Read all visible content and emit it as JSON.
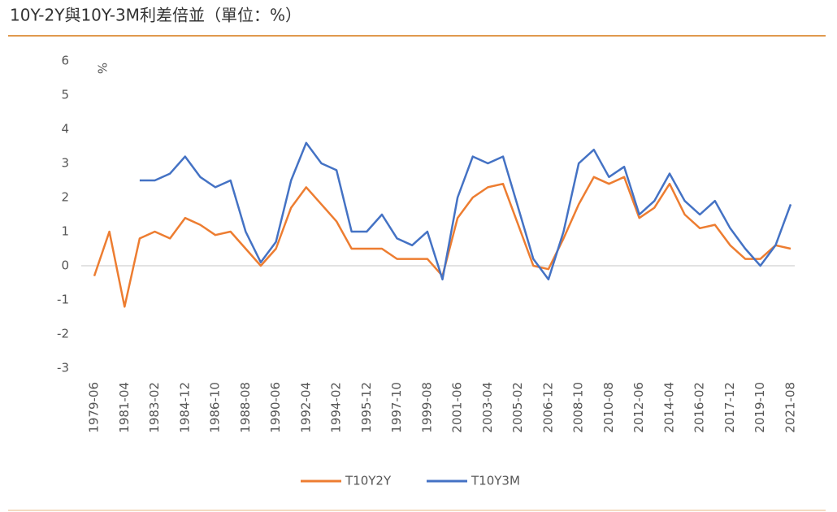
{
  "chart_data": {
    "type": "line",
    "title": "10Y-2Y與10Y-3M利差倍並（單位：%）",
    "y_unit_label": "%",
    "categories": [
      "1979-06",
      null,
      "1981-04",
      null,
      "1983-02",
      null,
      "1984-12",
      null,
      "1986-10",
      null,
      "1988-08",
      null,
      "1990-06",
      null,
      "1992-04",
      null,
      "1994-02",
      null,
      "1995-12",
      null,
      "1997-10",
      null,
      "1999-08",
      null,
      "2001-06",
      null,
      "2003-04",
      null,
      "2005-02",
      null,
      "2006-12",
      null,
      "2008-10",
      null,
      "2010-08",
      null,
      "2012-06",
      null,
      "2014-04",
      null,
      "2016-02",
      null,
      "2017-12",
      null,
      "2019-10",
      null,
      "2021-08"
    ],
    "series": [
      {
        "name": "T10Y2Y",
        "color": "#ed7d31",
        "values": [
          -0.3,
          1.0,
          -1.2,
          0.8,
          1.0,
          0.8,
          1.4,
          1.2,
          0.9,
          1.0,
          0.5,
          0.0,
          0.5,
          1.7,
          2.3,
          1.8,
          1.3,
          0.5,
          0.5,
          0.5,
          0.2,
          0.2,
          0.2,
          -0.3,
          1.4,
          2.0,
          2.3,
          2.4,
          1.2,
          0.0,
          -0.1,
          0.8,
          1.8,
          2.6,
          2.4,
          2.6,
          1.4,
          1.7,
          2.4,
          1.5,
          1.1,
          1.2,
          0.6,
          0.2,
          0.2,
          0.6,
          0.5
        ]
      },
      {
        "name": "T10Y3M",
        "color": "#4472c4",
        "values": [
          null,
          null,
          null,
          2.5,
          2.5,
          2.7,
          3.2,
          2.6,
          2.3,
          2.5,
          1.0,
          0.1,
          0.7,
          2.5,
          3.6,
          3.0,
          2.8,
          1.0,
          1.0,
          1.5,
          0.8,
          0.6,
          1.0,
          -0.4,
          2.0,
          3.2,
          3.0,
          3.2,
          1.7,
          0.2,
          -0.4,
          1.0,
          3.0,
          3.4,
          2.6,
          2.9,
          1.5,
          1.9,
          2.7,
          1.9,
          1.5,
          1.9,
          1.1,
          0.5,
          0.0,
          0.6,
          1.8
        ]
      }
    ],
    "ylim": [
      -3,
      6
    ],
    "yticks": [
      -3,
      -2,
      -1,
      0,
      1,
      2,
      3,
      4,
      5,
      6
    ],
    "reference_line": 0,
    "legend": "bottom"
  }
}
